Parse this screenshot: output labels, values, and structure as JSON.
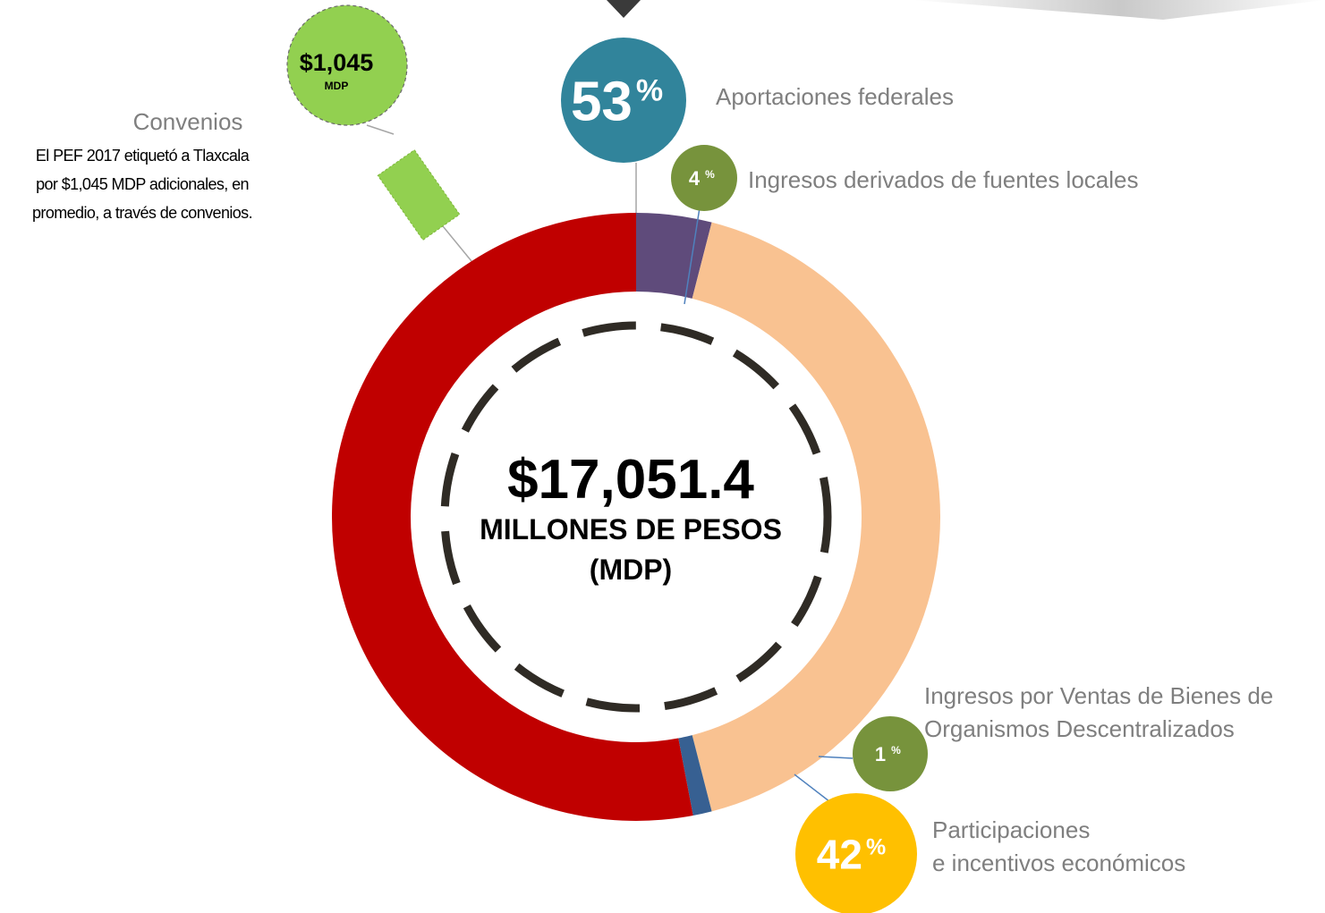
{
  "chart_data": {
    "type": "donut",
    "categories": [
      "Ingresos derivados de fuentes locales",
      "Participaciones\ne incentivos económicos",
      "Ingresos por Ventas de Bienes de\nOrganismos Descentralizados",
      "Aportaciones  federales"
    ],
    "values": [
      4,
      42,
      1,
      53
    ],
    "unit": "%",
    "colors": [
      "#5f4b7b",
      "#f9c291",
      "#376092",
      "#c00000"
    ],
    "label_colors": [
      "#77933c",
      "#ffc000",
      "#77933c",
      "#31849b"
    ],
    "center_value": "$17,051.4",
    "center_lines": [
      "MILLONES DE PESOS",
      "(MDP)"
    ],
    "annotation": {
      "amount": "$1,045",
      "unit": "MDP",
      "title": "Convenios",
      "text": "El PEF 2017 etiquetó a Tlaxcala\npor $1,045 MDP adicionales, en\npromedio, a través de convenios."
    }
  }
}
